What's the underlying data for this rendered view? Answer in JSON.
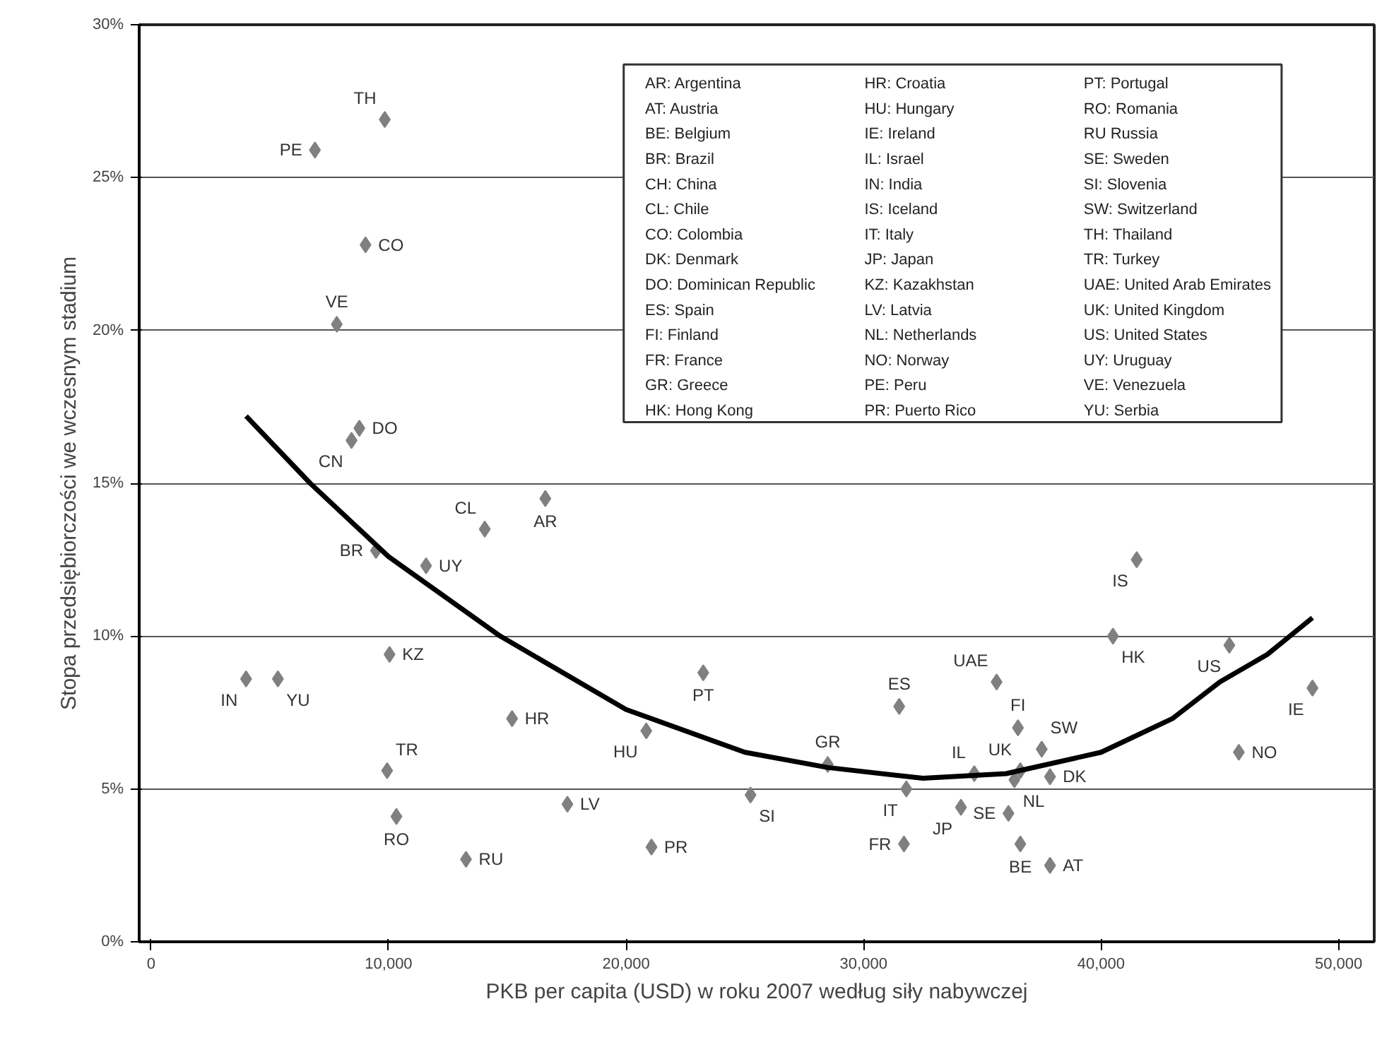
{
  "chart_data": {
    "type": "scatter",
    "xlabel": "PKB per capita (USD) w roku 2007 według siły nabywczej",
    "ylabel": "Stopa przedsiębiorczości we wczesnym stadium",
    "xlim": [
      -500,
      51500
    ],
    "ylim": [
      0,
      30
    ],
    "xticks": [
      {
        "value": 0,
        "label": "0"
      },
      {
        "value": 10000,
        "label": "10,000"
      },
      {
        "value": 20000,
        "label": "20,000"
      },
      {
        "value": 30000,
        "label": "30,000"
      },
      {
        "value": 40000,
        "label": "40,000"
      },
      {
        "value": 50000,
        "label": "50,000"
      }
    ],
    "yticks": [
      {
        "value": 0,
        "label": "0%"
      },
      {
        "value": 5,
        "label": "5%"
      },
      {
        "value": 10,
        "label": "10%"
      },
      {
        "value": 15,
        "label": "15%"
      },
      {
        "value": 20,
        "label": "20%"
      },
      {
        "value": 25,
        "label": "25%"
      },
      {
        "value": 30,
        "label": "30%"
      }
    ],
    "grid": "y",
    "series": [
      {
        "marker": "diamond",
        "color": "#808080",
        "x": [
          9840,
          6900,
          9030,
          7820,
          8770,
          8440,
          14050,
          16600,
          9470,
          11580,
          10040,
          4000,
          5340,
          15200,
          9940,
          10330,
          13260,
          17530,
          20850,
          23250,
          28490,
          25240,
          21070,
          31500,
          31800,
          31700,
          35600,
          34100,
          34660,
          36600,
          36100,
          36600,
          37850,
          36500,
          37500,
          37850,
          36350,
          41500,
          40500,
          45400,
          48900,
          45800
        ],
        "values": [
          26.9,
          25.9,
          22.8,
          20.2,
          16.8,
          16.4,
          13.5,
          14.5,
          12.8,
          12.3,
          9.4,
          8.6,
          8.6,
          7.3,
          5.6,
          4.1,
          2.7,
          4.5,
          6.9,
          8.8,
          5.8,
          4.8,
          3.1,
          7.7,
          5.0,
          3.2,
          8.5,
          4.4,
          5.5,
          5.6,
          4.2,
          3.2,
          2.5,
          7.0,
          6.3,
          5.4,
          5.3,
          12.5,
          10.0,
          9.7,
          8.3,
          6.2
        ]
      },
      {
        "type": "line",
        "color": "#000000",
        "x": [
          4000,
          6700,
          10000,
          14700,
          20000,
          25000,
          28500,
          32500,
          36000,
          40000,
          43000,
          45000,
          47000,
          48900
        ],
        "values": [
          17.2,
          15.0,
          12.6,
          10.0,
          7.6,
          6.2,
          5.7,
          5.35,
          5.5,
          6.2,
          7.3,
          8.5,
          9.4,
          10.6
        ]
      }
    ],
    "annotations": [
      {
        "text": "TH",
        "x": 9840,
        "y": 26.9
      },
      {
        "text": "PE",
        "x": 6900,
        "y": 25.9
      },
      {
        "text": "CO",
        "x": 9030,
        "y": 22.8
      },
      {
        "text": "VE",
        "x": 7820,
        "y": 20.2
      },
      {
        "text": "DO",
        "x": 8770,
        "y": 16.8
      },
      {
        "text": "CN",
        "x": 8440,
        "y": 16.4
      },
      {
        "text": "CL",
        "x": 14050,
        "y": 13.5
      },
      {
        "text": "AR",
        "x": 16600,
        "y": 14.5
      },
      {
        "text": "BR",
        "x": 9470,
        "y": 12.8
      },
      {
        "text": "UY",
        "x": 11580,
        "y": 12.3
      },
      {
        "text": "KZ",
        "x": 10040,
        "y": 9.4
      },
      {
        "text": "IN",
        "x": 4000,
        "y": 8.6
      },
      {
        "text": "YU",
        "x": 5340,
        "y": 8.6
      },
      {
        "text": "HR",
        "x": 15200,
        "y": 7.3
      },
      {
        "text": "TR",
        "x": 9940,
        "y": 5.6
      },
      {
        "text": "RO",
        "x": 10330,
        "y": 4.1
      },
      {
        "text": "RU",
        "x": 13260,
        "y": 2.7
      },
      {
        "text": "LV",
        "x": 17530,
        "y": 4.5
      },
      {
        "text": "HU",
        "x": 20850,
        "y": 6.9
      },
      {
        "text": "PT",
        "x": 23250,
        "y": 8.8
      },
      {
        "text": "GR",
        "x": 28490,
        "y": 5.8
      },
      {
        "text": "SI",
        "x": 25240,
        "y": 4.8
      },
      {
        "text": "PR",
        "x": 21070,
        "y": 3.1
      },
      {
        "text": "ES",
        "x": 31500,
        "y": 7.7
      },
      {
        "text": "IT",
        "x": 31800,
        "y": 5.0
      },
      {
        "text": "FR",
        "x": 31700,
        "y": 3.2
      },
      {
        "text": "UAE",
        "x": 35600,
        "y": 8.5
      },
      {
        "text": "JP",
        "x": 34100,
        "y": 4.4
      },
      {
        "text": "IL",
        "x": 34660,
        "y": 5.5
      },
      {
        "text": "UK",
        "x": 36600,
        "y": 5.6
      },
      {
        "text": "SE",
        "x": 36100,
        "y": 4.2
      },
      {
        "text": "BE",
        "x": 36600,
        "y": 3.2
      },
      {
        "text": "AT",
        "x": 37850,
        "y": 2.5
      },
      {
        "text": "FI",
        "x": 36500,
        "y": 7.0
      },
      {
        "text": "SW",
        "x": 37500,
        "y": 6.3
      },
      {
        "text": "DK",
        "x": 37850,
        "y": 5.4
      },
      {
        "text": "NL",
        "x": 36350,
        "y": 5.3
      },
      {
        "text": "IS",
        "x": 41500,
        "y": 12.5
      },
      {
        "text": "HK",
        "x": 40500,
        "y": 10.0
      },
      {
        "text": "US",
        "x": 45400,
        "y": 9.7
      },
      {
        "text": "IE",
        "x": 48900,
        "y": 8.3
      },
      {
        "text": "NO",
        "x": 45800,
        "y": 6.2
      },
      "AR: Argentina",
      "AT: Austria",
      "BE: Belgium",
      "BR: Brazil",
      "CH: China",
      "CL: Chile",
      "CO: Colombia",
      "DK: Denmark",
      "DO: Dominican Republic",
      "ES: Spain",
      "FI: Finland",
      "FR: France",
      "GR: Greece",
      "HK: Hong Kong",
      "HR: Croatia",
      "HU: Hungary",
      "IE: Ireland",
      "IL: Israel",
      "IN: India",
      "IS: Iceland",
      "IT: Italy",
      "JP: Japan",
      "KZ: Kazakhstan",
      "LV: Latvia",
      "NL: Netherlands",
      "NO: Norway",
      "PE: Peru",
      "PR: Puerto Rico",
      "PT: Portugal",
      "RO: Romania",
      "RU Russia",
      "SE: Sweden",
      "SI: Slovenia",
      "SW: Switzerland",
      "TH: Thailand",
      "TR: Turkey",
      "UAE: United Arab Emirates",
      "UK: United Kingdom",
      "US: United States",
      "UY: Uruguay",
      "VE: Venezuela",
      "YU: Serbia"
    ]
  }
}
